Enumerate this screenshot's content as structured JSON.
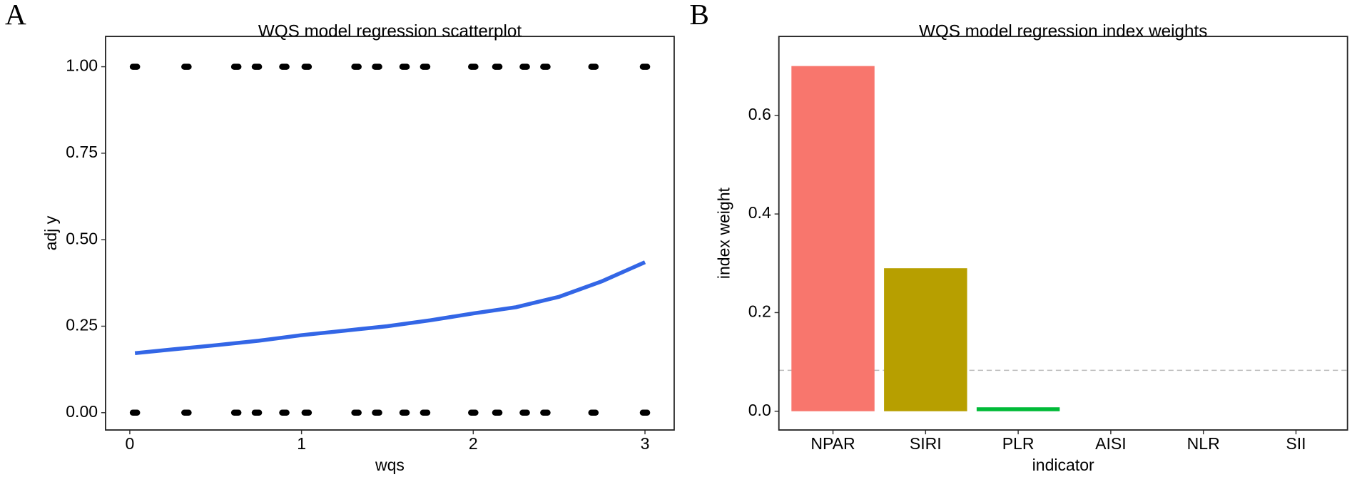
{
  "chart_data": [
    {
      "type": "scatter",
      "panel_label": "A",
      "title": "WQS model regression scatterplot",
      "x_label": "wqs",
      "y_label": "adj y",
      "points": {
        "color": "#000000",
        "x": [
          0.03,
          0.33,
          0.62,
          0.74,
          0.9,
          1.03,
          1.32,
          1.44,
          1.6,
          1.72,
          2.0,
          2.14,
          2.3,
          2.42,
          2.7,
          3.0,
          0.03,
          0.33,
          0.62,
          0.74,
          0.9,
          1.03,
          1.32,
          1.44,
          1.6,
          1.72,
          2.0,
          2.14,
          2.3,
          2.42,
          2.7,
          3.0
        ],
        "y": [
          1,
          1,
          1,
          1,
          1,
          1,
          1,
          1,
          1,
          1,
          1,
          1,
          1,
          1,
          1,
          1,
          0,
          0,
          0,
          0,
          0,
          0,
          0,
          0,
          0,
          0,
          0,
          0,
          0,
          0,
          0,
          0
        ]
      },
      "line": {
        "color": "#3366e6",
        "x": [
          0.03,
          0.25,
          0.5,
          0.75,
          1.0,
          1.25,
          1.5,
          1.75,
          2.0,
          2.25,
          2.5,
          2.75,
          3.0
        ],
        "y": [
          0.172,
          0.183,
          0.195,
          0.208,
          0.224,
          0.237,
          0.25,
          0.267,
          0.287,
          0.305,
          0.335,
          0.38,
          0.435
        ]
      },
      "xlim": [
        -0.141,
        3.17
      ],
      "ylim": [
        -0.05,
        1.0875
      ],
      "xticks": [
        0,
        1,
        2,
        3
      ],
      "yticks": [
        {
          "value": 0,
          "label": "0.00"
        },
        {
          "value": 0.25,
          "label": "0.25"
        },
        {
          "value": 0.5,
          "label": "0.50"
        },
        {
          "value": 0.75,
          "label": "0.75"
        },
        {
          "value": 1,
          "label": "1.00"
        }
      ]
    },
    {
      "type": "bar",
      "panel_label": "B",
      "title": "WQS model regression index weights",
      "x_label": "indicator",
      "y_label": "index weight",
      "categories": [
        "NPAR",
        "SIRI",
        "PLR",
        "AISI",
        "NLR",
        "SII"
      ],
      "values": [
        0.7,
        0.29,
        0.008,
        0,
        0,
        0
      ],
      "colors": [
        "#F8766D",
        "#B79F00",
        "#00BA38",
        "#00BFC4",
        "#619CFF",
        "#F564E3"
      ],
      "hline": 0.083,
      "hline_color": "#bbbbbb",
      "ylim": [
        -0.038,
        0.76
      ],
      "yticks": [
        {
          "value": 0,
          "label": "0.0"
        },
        0.2,
        0.4,
        0.6
      ]
    }
  ]
}
